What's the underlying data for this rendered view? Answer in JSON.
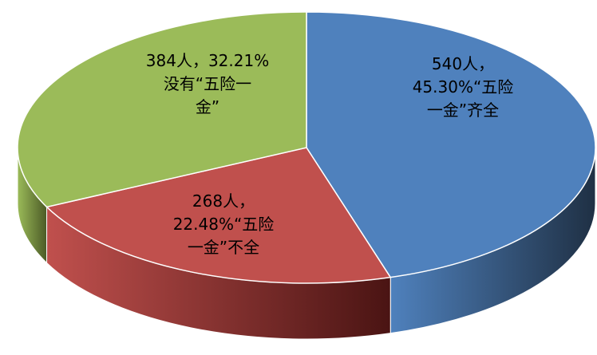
{
  "chart_data": {
    "type": "pie",
    "title": "",
    "slices": [
      {
        "label_lines": [
          "540人，",
          "45.30%“五险",
          "一金”齐全"
        ],
        "count": 540,
        "percent": 45.3,
        "color": "#4F81BD",
        "dark": "#1F3044"
      },
      {
        "label_lines": [
          "268人，",
          "22.48%“五险",
          "一金”不全"
        ],
        "count": 268,
        "percent": 22.48,
        "color": "#C0504D",
        "dark": "#4A1413"
      },
      {
        "label_lines": [
          "384人，32.21%",
          "没有“五险一",
          "金”"
        ],
        "count": 384,
        "percent": 32.21,
        "color": "#9BBB59",
        "dark": "#4B5A26"
      }
    ]
  }
}
